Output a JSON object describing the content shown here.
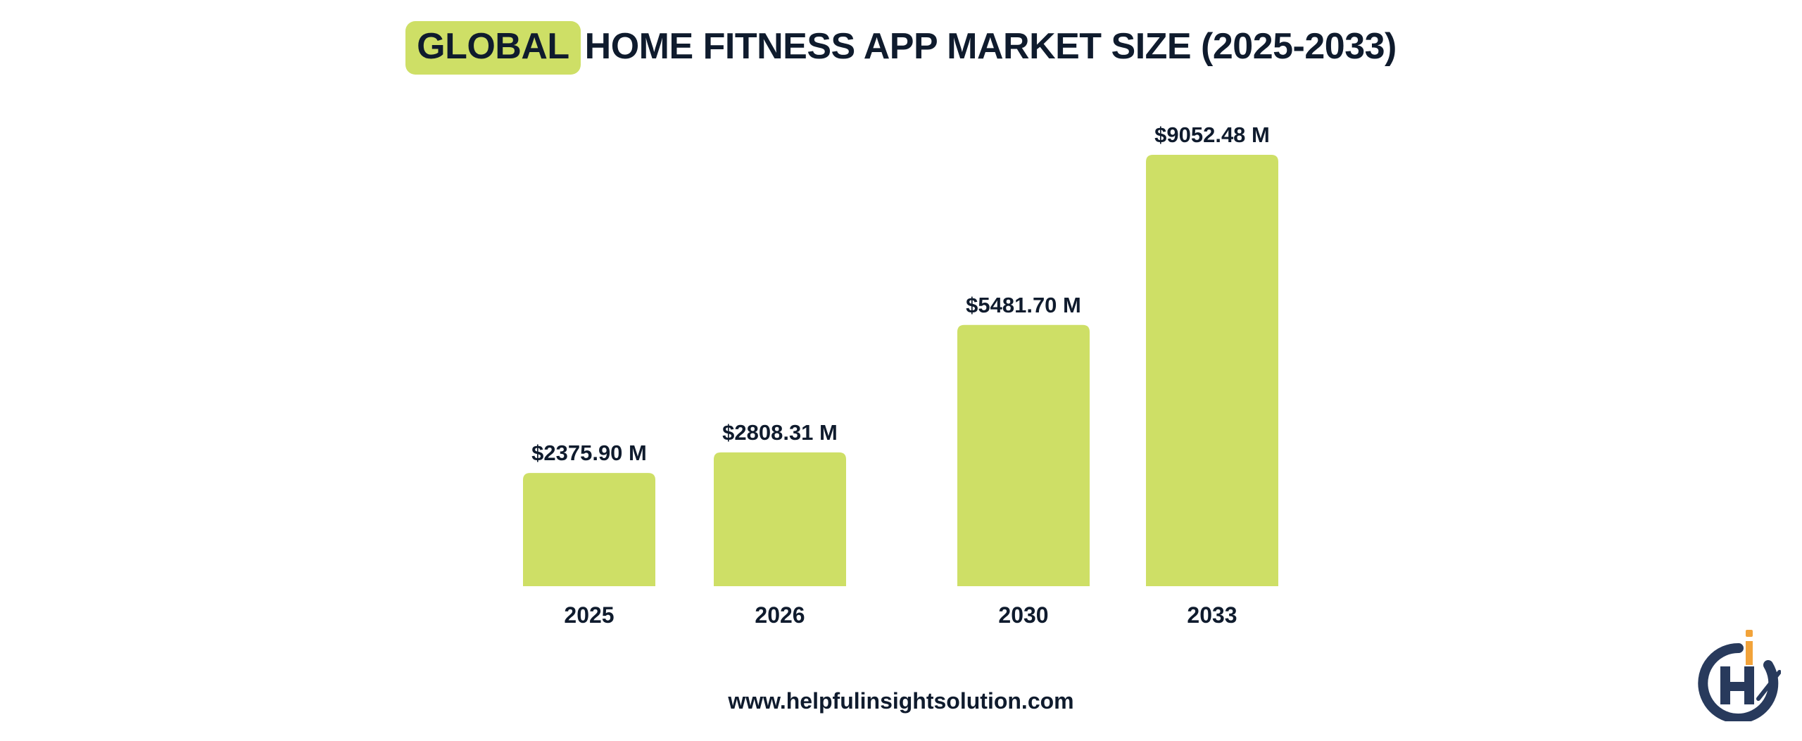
{
  "title": {
    "highlight": "GLOBAL",
    "rest": "HOME FITNESS APP MARKET SIZE (2025-2033)"
  },
  "footer": {
    "url": "www.helpfulinsightsolution.com"
  },
  "colors": {
    "bar": "#cedf66",
    "text": "#0f1b2d",
    "logo_navy": "#283a5c",
    "logo_orange": "#f2a33a"
  },
  "logo": {
    "icon": "helpful-insight-logo"
  },
  "chart_data": {
    "type": "bar",
    "categories": [
      "2025",
      "2026",
      "2030",
      "2033"
    ],
    "values": [
      2375.9,
      2808.31,
      5481.7,
      9052.48
    ],
    "data_labels": [
      "$2375.90 M",
      "$2808.31 M",
      "$5481.70 M",
      "$9052.48 M"
    ],
    "ylim": [
      0,
      9052.48
    ],
    "grid": false,
    "legend": "none"
  }
}
